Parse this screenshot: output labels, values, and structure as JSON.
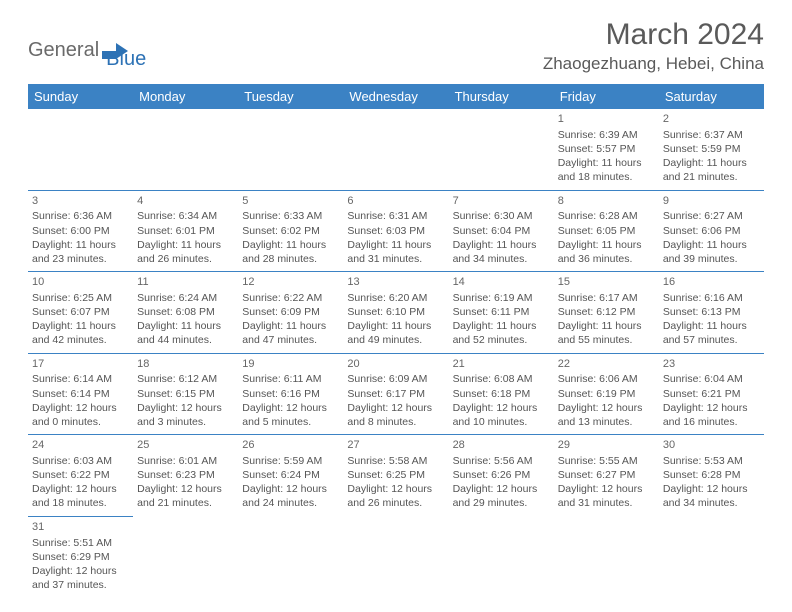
{
  "logo": {
    "text1": "General",
    "text2": "Blue"
  },
  "title": "March 2024",
  "location": "Zhaogezhuang, Hebei, China",
  "colors": {
    "header_bg": "#3b82c4",
    "header_fg": "#ffffff",
    "cell_border": "#3b82c4",
    "text": "#555555",
    "logo_gray": "#6a6a6a",
    "logo_blue": "#2d72b5"
  },
  "weekdays": [
    "Sunday",
    "Monday",
    "Tuesday",
    "Wednesday",
    "Thursday",
    "Friday",
    "Saturday"
  ],
  "weeks": [
    [
      null,
      null,
      null,
      null,
      null,
      {
        "n": "1",
        "rise": "Sunrise: 6:39 AM",
        "set": "Sunset: 5:57 PM",
        "day1": "Daylight: 11 hours",
        "day2": "and 18 minutes."
      },
      {
        "n": "2",
        "rise": "Sunrise: 6:37 AM",
        "set": "Sunset: 5:59 PM",
        "day1": "Daylight: 11 hours",
        "day2": "and 21 minutes."
      }
    ],
    [
      {
        "n": "3",
        "rise": "Sunrise: 6:36 AM",
        "set": "Sunset: 6:00 PM",
        "day1": "Daylight: 11 hours",
        "day2": "and 23 minutes."
      },
      {
        "n": "4",
        "rise": "Sunrise: 6:34 AM",
        "set": "Sunset: 6:01 PM",
        "day1": "Daylight: 11 hours",
        "day2": "and 26 minutes."
      },
      {
        "n": "5",
        "rise": "Sunrise: 6:33 AM",
        "set": "Sunset: 6:02 PM",
        "day1": "Daylight: 11 hours",
        "day2": "and 28 minutes."
      },
      {
        "n": "6",
        "rise": "Sunrise: 6:31 AM",
        "set": "Sunset: 6:03 PM",
        "day1": "Daylight: 11 hours",
        "day2": "and 31 minutes."
      },
      {
        "n": "7",
        "rise": "Sunrise: 6:30 AM",
        "set": "Sunset: 6:04 PM",
        "day1": "Daylight: 11 hours",
        "day2": "and 34 minutes."
      },
      {
        "n": "8",
        "rise": "Sunrise: 6:28 AM",
        "set": "Sunset: 6:05 PM",
        "day1": "Daylight: 11 hours",
        "day2": "and 36 minutes."
      },
      {
        "n": "9",
        "rise": "Sunrise: 6:27 AM",
        "set": "Sunset: 6:06 PM",
        "day1": "Daylight: 11 hours",
        "day2": "and 39 minutes."
      }
    ],
    [
      {
        "n": "10",
        "rise": "Sunrise: 6:25 AM",
        "set": "Sunset: 6:07 PM",
        "day1": "Daylight: 11 hours",
        "day2": "and 42 minutes."
      },
      {
        "n": "11",
        "rise": "Sunrise: 6:24 AM",
        "set": "Sunset: 6:08 PM",
        "day1": "Daylight: 11 hours",
        "day2": "and 44 minutes."
      },
      {
        "n": "12",
        "rise": "Sunrise: 6:22 AM",
        "set": "Sunset: 6:09 PM",
        "day1": "Daylight: 11 hours",
        "day2": "and 47 minutes."
      },
      {
        "n": "13",
        "rise": "Sunrise: 6:20 AM",
        "set": "Sunset: 6:10 PM",
        "day1": "Daylight: 11 hours",
        "day2": "and 49 minutes."
      },
      {
        "n": "14",
        "rise": "Sunrise: 6:19 AM",
        "set": "Sunset: 6:11 PM",
        "day1": "Daylight: 11 hours",
        "day2": "and 52 minutes."
      },
      {
        "n": "15",
        "rise": "Sunrise: 6:17 AM",
        "set": "Sunset: 6:12 PM",
        "day1": "Daylight: 11 hours",
        "day2": "and 55 minutes."
      },
      {
        "n": "16",
        "rise": "Sunrise: 6:16 AM",
        "set": "Sunset: 6:13 PM",
        "day1": "Daylight: 11 hours",
        "day2": "and 57 minutes."
      }
    ],
    [
      {
        "n": "17",
        "rise": "Sunrise: 6:14 AM",
        "set": "Sunset: 6:14 PM",
        "day1": "Daylight: 12 hours",
        "day2": "and 0 minutes."
      },
      {
        "n": "18",
        "rise": "Sunrise: 6:12 AM",
        "set": "Sunset: 6:15 PM",
        "day1": "Daylight: 12 hours",
        "day2": "and 3 minutes."
      },
      {
        "n": "19",
        "rise": "Sunrise: 6:11 AM",
        "set": "Sunset: 6:16 PM",
        "day1": "Daylight: 12 hours",
        "day2": "and 5 minutes."
      },
      {
        "n": "20",
        "rise": "Sunrise: 6:09 AM",
        "set": "Sunset: 6:17 PM",
        "day1": "Daylight: 12 hours",
        "day2": "and 8 minutes."
      },
      {
        "n": "21",
        "rise": "Sunrise: 6:08 AM",
        "set": "Sunset: 6:18 PM",
        "day1": "Daylight: 12 hours",
        "day2": "and 10 minutes."
      },
      {
        "n": "22",
        "rise": "Sunrise: 6:06 AM",
        "set": "Sunset: 6:19 PM",
        "day1": "Daylight: 12 hours",
        "day2": "and 13 minutes."
      },
      {
        "n": "23",
        "rise": "Sunrise: 6:04 AM",
        "set": "Sunset: 6:21 PM",
        "day1": "Daylight: 12 hours",
        "day2": "and 16 minutes."
      }
    ],
    [
      {
        "n": "24",
        "rise": "Sunrise: 6:03 AM",
        "set": "Sunset: 6:22 PM",
        "day1": "Daylight: 12 hours",
        "day2": "and 18 minutes."
      },
      {
        "n": "25",
        "rise": "Sunrise: 6:01 AM",
        "set": "Sunset: 6:23 PM",
        "day1": "Daylight: 12 hours",
        "day2": "and 21 minutes."
      },
      {
        "n": "26",
        "rise": "Sunrise: 5:59 AM",
        "set": "Sunset: 6:24 PM",
        "day1": "Daylight: 12 hours",
        "day2": "and 24 minutes."
      },
      {
        "n": "27",
        "rise": "Sunrise: 5:58 AM",
        "set": "Sunset: 6:25 PM",
        "day1": "Daylight: 12 hours",
        "day2": "and 26 minutes."
      },
      {
        "n": "28",
        "rise": "Sunrise: 5:56 AM",
        "set": "Sunset: 6:26 PM",
        "day1": "Daylight: 12 hours",
        "day2": "and 29 minutes."
      },
      {
        "n": "29",
        "rise": "Sunrise: 5:55 AM",
        "set": "Sunset: 6:27 PM",
        "day1": "Daylight: 12 hours",
        "day2": "and 31 minutes."
      },
      {
        "n": "30",
        "rise": "Sunrise: 5:53 AM",
        "set": "Sunset: 6:28 PM",
        "day1": "Daylight: 12 hours",
        "day2": "and 34 minutes."
      }
    ],
    [
      {
        "n": "31",
        "rise": "Sunrise: 5:51 AM",
        "set": "Sunset: 6:29 PM",
        "day1": "Daylight: 12 hours",
        "day2": "and 37 minutes."
      },
      null,
      null,
      null,
      null,
      null,
      null
    ]
  ]
}
